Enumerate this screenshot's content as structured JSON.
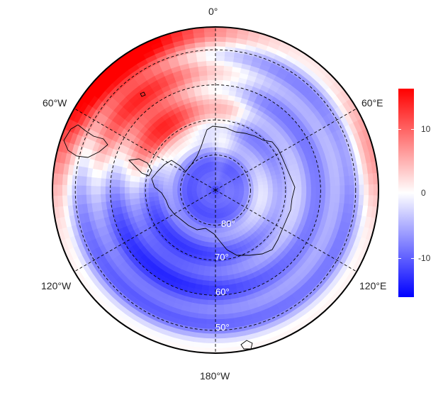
{
  "map": {
    "projection": "south polar stereographic",
    "longitude_labels": {
      "top": "0°",
      "upper_left": "60°W",
      "upper_right": "60°E",
      "lower_left": "120°W",
      "lower_right": "120°E",
      "bottom": "180°W"
    },
    "latitude_labels": [
      "80°",
      "70°",
      "60°",
      "50°"
    ],
    "graticule_latitudes": [
      80,
      70,
      60,
      50
    ],
    "graticule_longitudes": [
      0,
      60,
      120,
      180,
      240,
      300
    ],
    "land_outline": "Antarctica, South America tip, South Georgia, Campbell Island"
  },
  "legend": {
    "ticks": [
      "10",
      "0",
      "-10"
    ],
    "range": [
      -16,
      16
    ],
    "colors": {
      "high": "#ff0000",
      "mid": "#ffffff",
      "low": "#0000ff"
    }
  }
}
